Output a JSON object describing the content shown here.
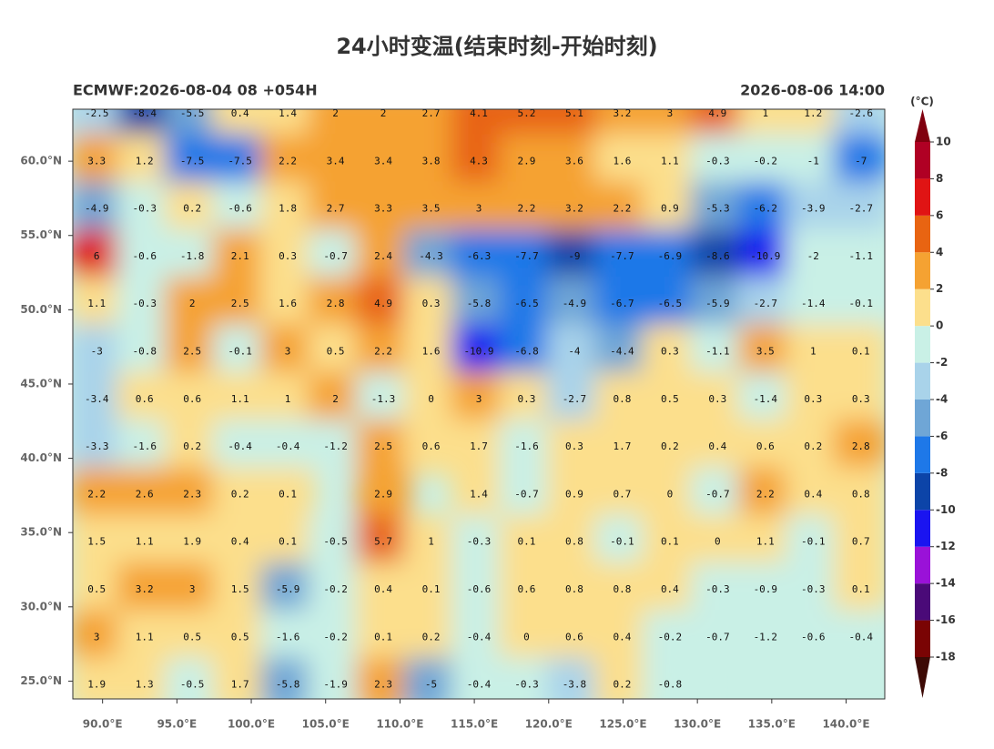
{
  "title": "24小时变温(结束时刻-开始时刻)",
  "subtitle_left": "ECMWF:2026-08-04 08 +054H",
  "subtitle_right": "2026-08-06 14:00",
  "map": {
    "xlim": [
      88,
      142.6
    ],
    "ylim": [
      23.8,
      63.5
    ],
    "xticks": [
      {
        "value": 90,
        "label": "90.0°E"
      },
      {
        "value": 95,
        "label": "95.0°E"
      },
      {
        "value": 100,
        "label": "100.0°E"
      },
      {
        "value": 105,
        "label": "105.0°E"
      },
      {
        "value": 110,
        "label": "110.0°E"
      },
      {
        "value": 115,
        "label": "115.0°E"
      },
      {
        "value": 120,
        "label": "120.0°E"
      },
      {
        "value": 125,
        "label": "125.0°E"
      },
      {
        "value": 130,
        "label": "130.0°E"
      },
      {
        "value": 135,
        "label": "135.0°E"
      },
      {
        "value": 140,
        "label": "140.0°E"
      }
    ],
    "yticks": [
      {
        "value": 25,
        "label": "25.0°N"
      },
      {
        "value": 30,
        "label": "30.0°N"
      },
      {
        "value": 35,
        "label": "35.0°N"
      },
      {
        "value": 40,
        "label": "40.0°N"
      },
      {
        "value": 45,
        "label": "45.0°N"
      },
      {
        "value": 50,
        "label": "50.0°N"
      },
      {
        "value": 55,
        "label": "55.0°N"
      },
      {
        "value": 60,
        "label": "60.0°N"
      }
    ],
    "values": [
      [
        -2.5,
        -8.4,
        -5.5,
        0.4,
        1.4,
        2.0,
        2.0,
        2.7,
        4.1,
        5.2,
        5.1,
        3.2,
        3.0,
        4.9,
        1.0,
        1.2,
        -2.6
      ],
      [
        3.3,
        1.2,
        -7.5,
        -7.5,
        2.2,
        3.4,
        3.4,
        3.8,
        4.3,
        2.9,
        3.6,
        1.6,
        1.1,
        -0.3,
        -0.2,
        -1.0,
        -7.0
      ],
      [
        -4.9,
        -0.3,
        0.2,
        -0.6,
        1.8,
        2.7,
        3.3,
        3.5,
        3.0,
        2.2,
        3.2,
        2.2,
        0.9,
        -5.3,
        -6.2,
        -3.9,
        -2.7
      ],
      [
        6.0,
        -0.6,
        -1.8,
        2.1,
        0.3,
        -0.7,
        2.4,
        -4.3,
        -6.3,
        -7.7,
        -9.0,
        -7.7,
        -6.9,
        -8.6,
        -10.9,
        -2.0,
        -1.1
      ],
      [
        1.1,
        -0.3,
        2.0,
        2.5,
        1.6,
        2.8,
        4.9,
        0.3,
        -5.8,
        -6.5,
        -4.9,
        -6.7,
        -6.5,
        -5.9,
        -2.7,
        -1.4,
        -0.1
      ],
      [
        -3.0,
        -0.8,
        2.5,
        -0.1,
        3.0,
        0.5,
        2.2,
        1.6,
        -10.9,
        -6.8,
        -4.0,
        -4.4,
        0.3,
        -1.1,
        3.5,
        1.0,
        0.1
      ],
      [
        -3.4,
        0.6,
        0.6,
        1.1,
        1.0,
        2.0,
        -1.3,
        0.0,
        3.0,
        0.3,
        -2.7,
        0.8,
        0.5,
        0.3,
        -1.4,
        0.3,
        0.3
      ],
      [
        -3.3,
        -1.6,
        0.2,
        -0.4,
        -0.4,
        -1.2,
        2.5,
        0.6,
        1.7,
        -1.6,
        0.3,
        1.7,
        0.2,
        0.4,
        0.6,
        0.2,
        2.8
      ],
      [
        2.2,
        2.6,
        2.3,
        0.2,
        0.1,
        null,
        2.9,
        null,
        1.4,
        -0.7,
        0.9,
        0.7,
        0.0,
        -0.7,
        2.2,
        0.4,
        0.8
      ],
      [
        1.5,
        1.1,
        1.9,
        0.4,
        0.1,
        -0.5,
        5.7,
        1.0,
        -0.3,
        0.1,
        0.8,
        -0.1,
        0.1,
        -0.0,
        1.1,
        -0.1,
        0.7
      ],
      [
        0.5,
        3.2,
        3.0,
        1.5,
        -5.9,
        -0.2,
        0.4,
        0.1,
        -0.6,
        0.6,
        0.8,
        0.8,
        0.4,
        -0.3,
        -0.9,
        -0.3,
        0.1
      ],
      [
        3.0,
        1.1,
        0.5,
        0.5,
        -1.6,
        -0.2,
        0.1,
        0.2,
        -0.4,
        0.0,
        0.6,
        0.4,
        -0.2,
        -0.7,
        -1.2,
        -0.6,
        -0.4
      ],
      [
        1.9,
        1.3,
        -0.5,
        1.7,
        -5.8,
        -1.9,
        2.3,
        -5.0,
        -0.4,
        -0.3,
        -3.8,
        0.2,
        -0.8,
        null,
        null,
        null,
        null
      ]
    ],
    "colorbar": {
      "unit": "(°C)",
      "ticks": [
        -18,
        -16,
        -14,
        -12,
        -10,
        -8,
        -6,
        -4,
        -2,
        0,
        2,
        4,
        6,
        8,
        10
      ],
      "colors": [
        "#3d0a05",
        "#7a0404",
        "#4a0a78",
        "#9a12d8",
        "#1a14f0",
        "#0c44a8",
        "#1e78e8",
        "#6fa6d6",
        "#a9d3ea",
        "#c9f0e6",
        "#fcdf8c",
        "#f5a232",
        "#e86412",
        "#e01414",
        "#b00024",
        "#80000f"
      ]
    }
  }
}
